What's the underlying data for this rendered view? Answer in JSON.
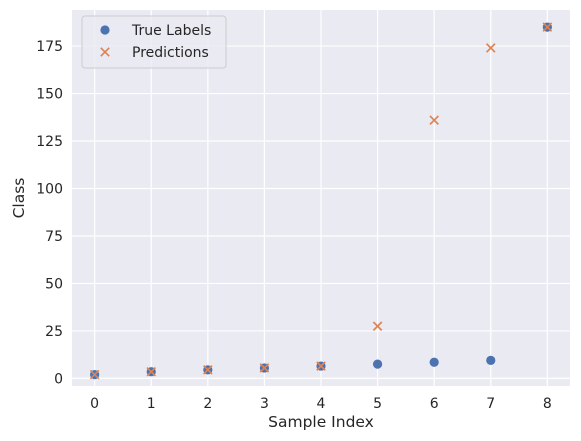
{
  "chart_data": {
    "type": "scatter",
    "xlabel": "Sample Index",
    "ylabel": "Class",
    "xlim": [
      -0.4,
      8.4
    ],
    "ylim": [
      -4,
      194
    ],
    "xticks": [
      0,
      1,
      2,
      3,
      4,
      5,
      6,
      7,
      8
    ],
    "yticks": [
      0,
      25,
      50,
      75,
      100,
      125,
      150,
      175
    ],
    "grid": true,
    "legend_position": "upper-left",
    "series": [
      {
        "name": "True Labels",
        "marker": "circle",
        "color": "#4C72B0",
        "x": [
          0,
          1,
          2,
          3,
          4,
          5,
          6,
          7,
          8
        ],
        "y": [
          2,
          3.5,
          4.5,
          5.5,
          6.5,
          7.5,
          8.5,
          9.5,
          185
        ]
      },
      {
        "name": "Predictions",
        "marker": "x",
        "color": "#DD8452",
        "x": [
          0,
          1,
          2,
          3,
          4,
          5,
          6,
          7,
          8
        ],
        "y": [
          2,
          3.5,
          4.5,
          5.5,
          6.5,
          27.5,
          136,
          174,
          185
        ]
      }
    ]
  },
  "colors": {
    "plot_background": "#EAEAF2",
    "grid": "#FFFFFF"
  }
}
